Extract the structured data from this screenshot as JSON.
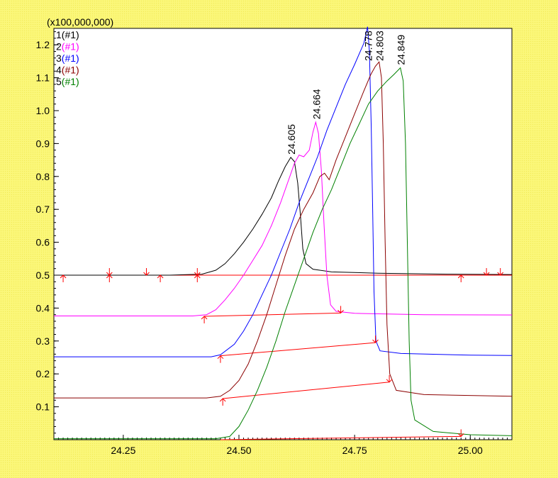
{
  "chart_data": {
    "type": "line",
    "title": "",
    "xlabel": "",
    "ylabel": "",
    "y_multiplier_label": "(x100,000,000)",
    "xlim": [
      24.1,
      25.09
    ],
    "ylim": [
      0.0,
      1.25
    ],
    "x_ticks": [
      24.25,
      24.5,
      24.75,
      25.0
    ],
    "x_tick_labels": [
      "24.25",
      "24.50",
      "24.75",
      "25.00"
    ],
    "y_ticks": [
      0.1,
      0.2,
      0.3,
      0.4,
      0.5,
      0.6,
      0.7,
      0.8,
      0.9,
      1.0,
      1.1,
      1.2
    ],
    "y_tick_labels": [
      "0.1",
      "0.2",
      "0.3",
      "0.4",
      "0.5",
      "0.6",
      "0.7",
      "0.8",
      "0.9",
      "1.0",
      "1.1",
      "1.2"
    ],
    "grid": false,
    "legend_position": "top-left",
    "legend": [
      {
        "num": "1",
        "suffix": "(#1)",
        "color": "#000000"
      },
      {
        "num": "2",
        "suffix": "(#1)",
        "color": "#ff00ff"
      },
      {
        "num": "3",
        "suffix": "(#1)",
        "color": "#0000ff"
      },
      {
        "num": "4",
        "suffix": "(#1)",
        "color": "#8b0000"
      },
      {
        "num": "5",
        "suffix": "(#1)",
        "color": "#008000"
      }
    ],
    "series": [
      {
        "color": "#000000",
        "points": [
          [
            24.1,
            0.5
          ],
          [
            24.35,
            0.5
          ],
          [
            24.42,
            0.503
          ],
          [
            24.45,
            0.515
          ],
          [
            24.47,
            0.535
          ],
          [
            24.49,
            0.565
          ],
          [
            24.51,
            0.6
          ],
          [
            24.53,
            0.64
          ],
          [
            24.55,
            0.685
          ],
          [
            24.57,
            0.735
          ],
          [
            24.585,
            0.785
          ],
          [
            24.6,
            0.83
          ],
          [
            24.612,
            0.858
          ],
          [
            24.62,
            0.845
          ],
          [
            24.627,
            0.78
          ],
          [
            24.633,
            0.68
          ],
          [
            24.638,
            0.58
          ],
          [
            24.645,
            0.535
          ],
          [
            24.66,
            0.518
          ],
          [
            24.7,
            0.51
          ],
          [
            24.8,
            0.506
          ],
          [
            24.95,
            0.503
          ],
          [
            25.09,
            0.502
          ]
        ]
      },
      {
        "color": "#ff00ff",
        "points": [
          [
            24.1,
            0.376
          ],
          [
            24.4,
            0.376
          ],
          [
            24.43,
            0.38
          ],
          [
            24.45,
            0.395
          ],
          [
            24.47,
            0.425
          ],
          [
            24.49,
            0.46
          ],
          [
            24.51,
            0.5
          ],
          [
            24.53,
            0.545
          ],
          [
            24.55,
            0.59
          ],
          [
            24.57,
            0.65
          ],
          [
            24.59,
            0.72
          ],
          [
            24.61,
            0.8
          ],
          [
            24.62,
            0.84
          ],
          [
            24.63,
            0.865
          ],
          [
            24.64,
            0.86
          ],
          [
            24.652,
            0.88
          ],
          [
            24.66,
            0.935
          ],
          [
            24.666,
            0.965
          ],
          [
            24.672,
            0.93
          ],
          [
            24.678,
            0.82
          ],
          [
            24.684,
            0.65
          ],
          [
            24.69,
            0.5
          ],
          [
            24.698,
            0.41
          ],
          [
            24.71,
            0.39
          ],
          [
            24.75,
            0.384
          ],
          [
            24.9,
            0.38
          ],
          [
            25.09,
            0.379
          ]
        ]
      },
      {
        "color": "#0000ff",
        "points": [
          [
            24.1,
            0.252
          ],
          [
            24.44,
            0.252
          ],
          [
            24.46,
            0.258
          ],
          [
            24.49,
            0.29
          ],
          [
            24.51,
            0.33
          ],
          [
            24.53,
            0.38
          ],
          [
            24.55,
            0.44
          ],
          [
            24.57,
            0.5
          ],
          [
            24.59,
            0.57
          ],
          [
            24.61,
            0.64
          ],
          [
            24.63,
            0.72
          ],
          [
            24.65,
            0.79
          ],
          [
            24.67,
            0.86
          ],
          [
            24.69,
            0.94
          ],
          [
            24.71,
            1.01
          ],
          [
            24.73,
            1.08
          ],
          [
            24.75,
            1.14
          ],
          [
            24.77,
            1.205
          ],
          [
            24.778,
            1.255
          ],
          [
            24.782,
            1.18
          ],
          [
            24.786,
            0.95
          ],
          [
            24.789,
            0.7
          ],
          [
            24.792,
            0.45
          ],
          [
            24.796,
            0.3
          ],
          [
            24.805,
            0.27
          ],
          [
            24.85,
            0.262
          ],
          [
            25.0,
            0.257
          ],
          [
            25.09,
            0.256
          ]
        ]
      },
      {
        "color": "#8b0000",
        "points": [
          [
            24.1,
            0.127
          ],
          [
            24.43,
            0.127
          ],
          [
            24.46,
            0.132
          ],
          [
            24.48,
            0.15
          ],
          [
            24.5,
            0.18
          ],
          [
            24.52,
            0.23
          ],
          [
            24.54,
            0.3
          ],
          [
            24.56,
            0.38
          ],
          [
            24.58,
            0.47
          ],
          [
            24.6,
            0.56
          ],
          [
            24.62,
            0.64
          ],
          [
            24.64,
            0.7
          ],
          [
            24.66,
            0.75
          ],
          [
            24.675,
            0.8
          ],
          [
            24.685,
            0.81
          ],
          [
            24.695,
            0.79
          ],
          [
            24.71,
            0.85
          ],
          [
            24.73,
            0.92
          ],
          [
            24.75,
            0.99
          ],
          [
            24.77,
            1.06
          ],
          [
            24.785,
            1.11
          ],
          [
            24.795,
            1.135
          ],
          [
            24.803,
            1.148
          ],
          [
            24.808,
            1.1
          ],
          [
            24.812,
            0.9
          ],
          [
            24.816,
            0.6
          ],
          [
            24.82,
            0.35
          ],
          [
            24.826,
            0.2
          ],
          [
            24.84,
            0.15
          ],
          [
            24.9,
            0.137
          ],
          [
            25.09,
            0.132
          ]
        ]
      },
      {
        "color": "#008000",
        "points": [
          [
            24.1,
            0.003
          ],
          [
            24.45,
            0.003
          ],
          [
            24.48,
            0.01
          ],
          [
            24.5,
            0.04
          ],
          [
            24.52,
            0.09
          ],
          [
            24.54,
            0.15
          ],
          [
            24.56,
            0.22
          ],
          [
            24.58,
            0.3
          ],
          [
            24.6,
            0.39
          ],
          [
            24.62,
            0.47
          ],
          [
            24.64,
            0.55
          ],
          [
            24.66,
            0.63
          ],
          [
            24.68,
            0.7
          ],
          [
            24.7,
            0.76
          ],
          [
            24.72,
            0.83
          ],
          [
            24.74,
            0.9
          ],
          [
            24.76,
            0.96
          ],
          [
            24.78,
            1.02
          ],
          [
            24.8,
            1.06
          ],
          [
            24.82,
            1.09
          ],
          [
            24.835,
            1.11
          ],
          [
            24.849,
            1.13
          ],
          [
            24.855,
            1.09
          ],
          [
            24.86,
            0.9
          ],
          [
            24.864,
            0.6
          ],
          [
            24.868,
            0.3
          ],
          [
            24.872,
            0.12
          ],
          [
            24.88,
            0.06
          ],
          [
            24.92,
            0.025
          ],
          [
            25.0,
            0.015
          ],
          [
            25.09,
            0.012
          ]
        ]
      }
    ],
    "peak_labels": [
      {
        "text": "24.605",
        "x": 24.612,
        "y": 0.858
      },
      {
        "text": "24.664",
        "x": 24.666,
        "y": 0.965
      },
      {
        "text": "24.778",
        "x": 24.778,
        "y": 1.255
      },
      {
        "text": "24.803",
        "x": 24.803,
        "y": 1.148
      },
      {
        "text": "24.849",
        "x": 24.849,
        "y": 1.13
      }
    ],
    "integration_color": "#ff0000",
    "baselines": [
      [
        [
          24.1,
          0.5
        ],
        [
          25.09,
          0.5
        ]
      ],
      [
        [
          24.425,
          0.375
        ],
        [
          24.72,
          0.385
        ]
      ],
      [
        [
          24.46,
          0.255
        ],
        [
          24.795,
          0.295
        ]
      ],
      [
        [
          24.465,
          0.125
        ],
        [
          24.825,
          0.175
        ]
      ],
      [
        [
          24.46,
          0.0
        ],
        [
          24.98,
          0.01
        ]
      ]
    ],
    "markers": [
      {
        "x": 24.12,
        "y": 0.5,
        "dir": "up"
      },
      {
        "x": 24.22,
        "y": 0.5,
        "dir": "both"
      },
      {
        "x": 24.3,
        "y": 0.5,
        "dir": "down"
      },
      {
        "x": 24.33,
        "y": 0.5,
        "dir": "up"
      },
      {
        "x": 24.41,
        "y": 0.5,
        "dir": "both"
      },
      {
        "x": 24.98,
        "y": 0.5,
        "dir": "up"
      },
      {
        "x": 25.035,
        "y": 0.5,
        "dir": "down"
      },
      {
        "x": 25.065,
        "y": 0.5,
        "dir": "down"
      },
      {
        "x": 24.425,
        "y": 0.375,
        "dir": "up"
      },
      {
        "x": 24.72,
        "y": 0.385,
        "dir": "down"
      },
      {
        "x": 24.46,
        "y": 0.255,
        "dir": "up"
      },
      {
        "x": 24.795,
        "y": 0.295,
        "dir": "down"
      },
      {
        "x": 24.465,
        "y": 0.125,
        "dir": "up"
      },
      {
        "x": 24.825,
        "y": 0.175,
        "dir": "down"
      },
      {
        "x": 24.98,
        "y": 0.01,
        "dir": "down"
      }
    ]
  }
}
